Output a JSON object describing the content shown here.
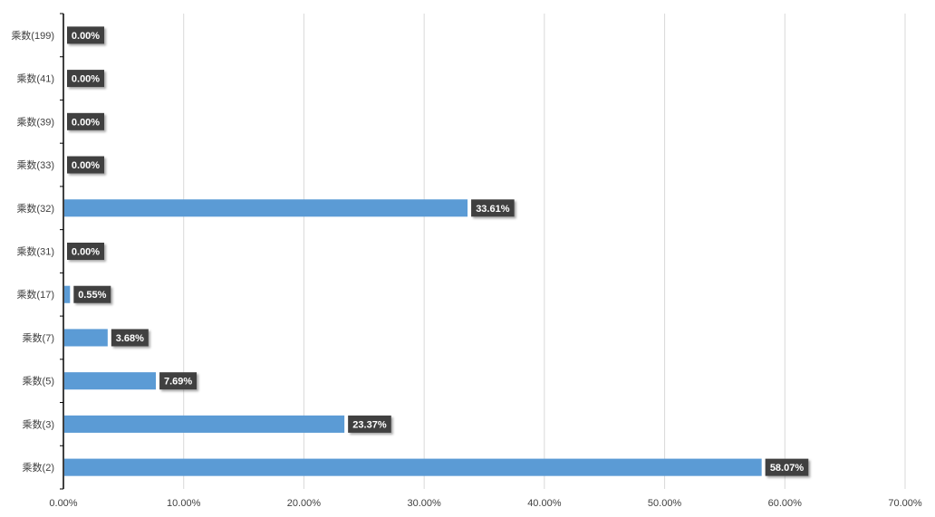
{
  "chart_data": {
    "type": "bar",
    "orientation": "horizontal",
    "categories": [
      "乘数(2)",
      "乘数(3)",
      "乘数(5)",
      "乘数(7)",
      "乘数(17)",
      "乘数(31)",
      "乘数(32)",
      "乘数(33)",
      "乘数(39)",
      "乘数(41)",
      "乘数(199)"
    ],
    "values": [
      58.07,
      23.37,
      7.69,
      3.68,
      0.55,
      0.0,
      33.61,
      0.0,
      0.0,
      0.0,
      0.0
    ],
    "data_labels": [
      "58.07%",
      "23.37%",
      "7.69%",
      "3.68%",
      "0.55%",
      "0.00%",
      "33.61%",
      "0.00%",
      "0.00%",
      "0.00%",
      "0.00%"
    ],
    "x_ticks": [
      "0.00%",
      "10.00%",
      "20.00%",
      "30.00%",
      "40.00%",
      "50.00%",
      "60.00%",
      "70.00%"
    ],
    "xlim": [
      0,
      70
    ],
    "x_tick_step": 10,
    "grid": "vertical",
    "legend": "none",
    "title": "",
    "xlabel": "",
    "ylabel": "",
    "colors": {
      "bar": "#5b9bd5",
      "label_bg": "#404040",
      "label_text": "#ffffff",
      "grid": "#d9d9d9",
      "axis": "#000000",
      "tick_text": "#404040"
    }
  }
}
